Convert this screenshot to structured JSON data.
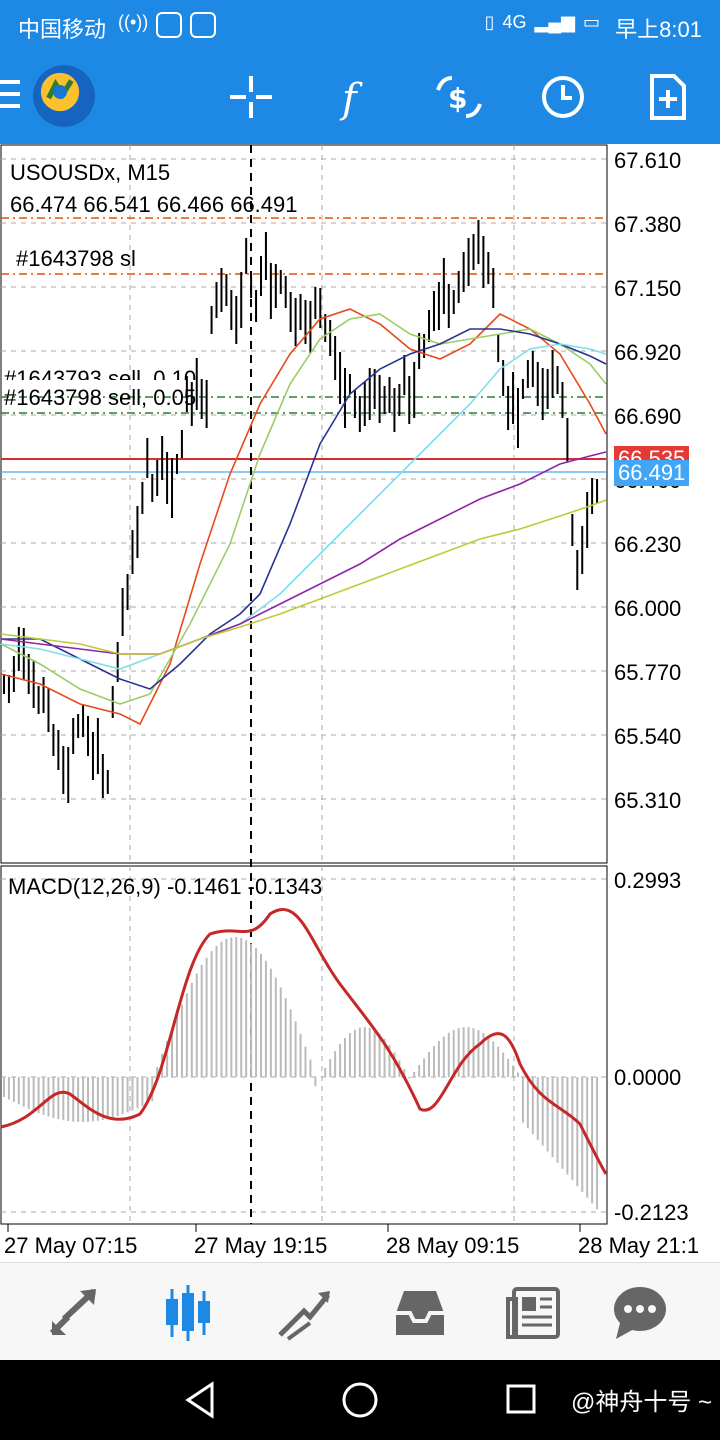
{
  "status_bar": {
    "carrier": "中国移动",
    "time": "早上8:01",
    "network": "4G"
  },
  "toolbar": {
    "icons": [
      "menu-icon",
      "metatrader-logo",
      "crosshair-icon",
      "indicator-f-icon",
      "currency-exchange-icon",
      "clock-icon",
      "new-order-icon"
    ]
  },
  "chart": {
    "symbol_timeframe": "USOUSDx, M15",
    "ohlc": "66.474 66.541 66.466 66.491",
    "order_labels": {
      "sl": "#1643798 sl",
      "sell1": "#1643793 sell, 0.10",
      "sell2": "#1643798 sell, 0.05"
    },
    "price_axis": [
      "67.610",
      "67.380",
      "67.150",
      "66.920",
      "66.690",
      "66.460",
      "66.230",
      "66.000",
      "65.770",
      "65.540",
      "65.310"
    ],
    "ask_price": "66.535",
    "bid_price": "66.491",
    "macd_label": "MACD(12,26,9) -0.1461 -0.1343",
    "macd_axis": [
      "0.2993",
      "0.0000",
      "-0.2123"
    ],
    "time_axis": [
      "27 May 07:15",
      "27 May 19:15",
      "28 May 09:15",
      "28 May 21:1"
    ],
    "colors": {
      "ask_line": "#d32f2f",
      "bid_line": "#64b5f6",
      "sl_line": "#e65100",
      "order_line": "#2e7d32",
      "macd_signal": "#c62828",
      "ma_red": "#e64a19",
      "ma_green": "#9ccc65",
      "ma_blue": "#283593",
      "ma_cyan": "#80deea",
      "ma_purple": "#8e24aa",
      "ma_yellow": "#c0ca33"
    }
  },
  "bottom_nav": {
    "items": [
      "quotes-icon",
      "chart-icon",
      "trade-icon",
      "history-icon",
      "news-icon",
      "chat-icon"
    ],
    "active": "chart-icon"
  },
  "system_nav": {
    "watermark": "@神舟十号 ~"
  }
}
